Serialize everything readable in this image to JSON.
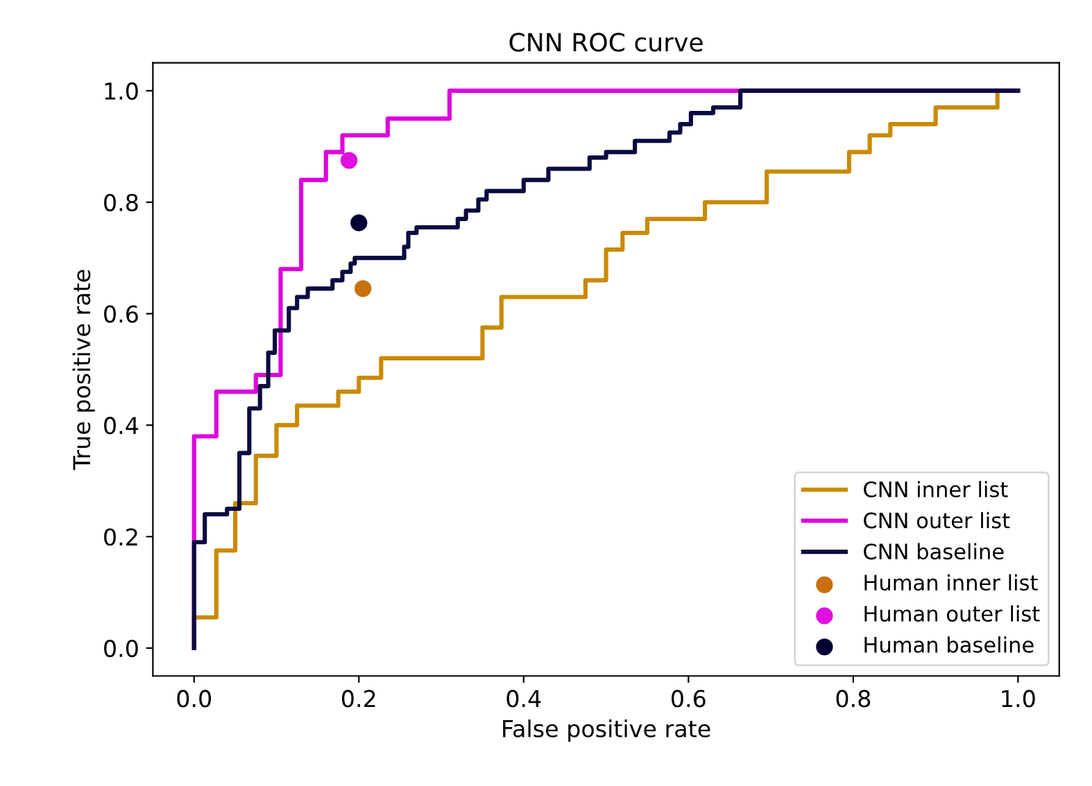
{
  "chart_data": {
    "type": "step",
    "title": "CNN ROC curve",
    "xlabel": "False positive rate",
    "ylabel": "True positive rate",
    "xlim": [
      -0.05,
      1.05
    ],
    "ylim": [
      -0.05,
      1.05
    ],
    "xticks": [
      {
        "value": 0,
        "label": "0.0"
      },
      {
        "value": 0.2,
        "label": "0.2"
      },
      {
        "value": 0.4,
        "label": "0.4"
      },
      {
        "value": 0.6,
        "label": "0.6"
      },
      {
        "value": 0.8,
        "label": "0.8"
      },
      {
        "value": 1,
        "label": "1.0"
      }
    ],
    "yticks": [
      {
        "value": 0,
        "label": "0.0"
      },
      {
        "value": 0.2,
        "label": "0.2"
      },
      {
        "value": 0.4,
        "label": "0.4"
      },
      {
        "value": 0.6,
        "label": "0.6"
      },
      {
        "value": 0.8,
        "label": "0.8"
      },
      {
        "value": 1,
        "label": "1.0"
      }
    ],
    "grid": false,
    "legend": "bottom right",
    "series": [
      {
        "name": "CNN inner list",
        "color": "#c98a00",
        "x": [
          0,
          0,
          0.027,
          0.05,
          0.075,
          0.1,
          0.125,
          0.175,
          0.2,
          0.227,
          0.35,
          0.373,
          0.475,
          0.5,
          0.52,
          0.55,
          0.62,
          0.695,
          0.795,
          0.82,
          0.845,
          0.9,
          0.975
        ],
        "values": [
          0,
          0.055,
          0.175,
          0.26,
          0.345,
          0.4,
          0.435,
          0.46,
          0.485,
          0.52,
          0.575,
          0.63,
          0.66,
          0.715,
          0.745,
          0.77,
          0.8,
          0.855,
          0.89,
          0.92,
          0.94,
          0.97,
          1.0
        ]
      },
      {
        "name": "CNN outer list",
        "color": "#dd00dd",
        "x": [
          0,
          0,
          0.027,
          0.075,
          0.105,
          0.13,
          0.16,
          0.18,
          0.235,
          0.31,
          1.0
        ],
        "values": [
          0,
          0.38,
          0.46,
          0.49,
          0.68,
          0.84,
          0.89,
          0.92,
          0.95,
          1.0,
          1.0
        ]
      },
      {
        "name": "CNN baseline",
        "color": "#0a0a40",
        "x": [
          0,
          0,
          0.013,
          0.04,
          0.055,
          0.067,
          0.08,
          0.09,
          0.098,
          0.115,
          0.125,
          0.138,
          0.168,
          0.18,
          0.19,
          0.195,
          0.255,
          0.26,
          0.27,
          0.32,
          0.33,
          0.345,
          0.355,
          0.4,
          0.43,
          0.48,
          0.5,
          0.535,
          0.577,
          0.59,
          0.603,
          0.63,
          0.663,
          1.0
        ],
        "values": [
          0,
          0.19,
          0.24,
          0.25,
          0.35,
          0.43,
          0.47,
          0.53,
          0.57,
          0.61,
          0.63,
          0.645,
          0.66,
          0.675,
          0.69,
          0.7,
          0.72,
          0.745,
          0.755,
          0.77,
          0.785,
          0.805,
          0.82,
          0.84,
          0.86,
          0.88,
          0.89,
          0.91,
          0.925,
          0.94,
          0.96,
          0.97,
          1.0,
          1.0
        ]
      },
      {
        "name": "Human inner list",
        "type": "scatter",
        "color": "#c87010",
        "marker": "circle",
        "x": [
          0.205
        ],
        "values": [
          0.645
        ]
      },
      {
        "name": "Human outer list",
        "type": "scatter",
        "color": "#e010e0",
        "marker": "circle",
        "x": [
          0.188
        ],
        "values": [
          0.875
        ]
      },
      {
        "name": "Human baseline",
        "type": "scatter",
        "color": "#000033",
        "marker": "circle",
        "x": [
          0.2
        ],
        "values": [
          0.763
        ]
      }
    ]
  }
}
